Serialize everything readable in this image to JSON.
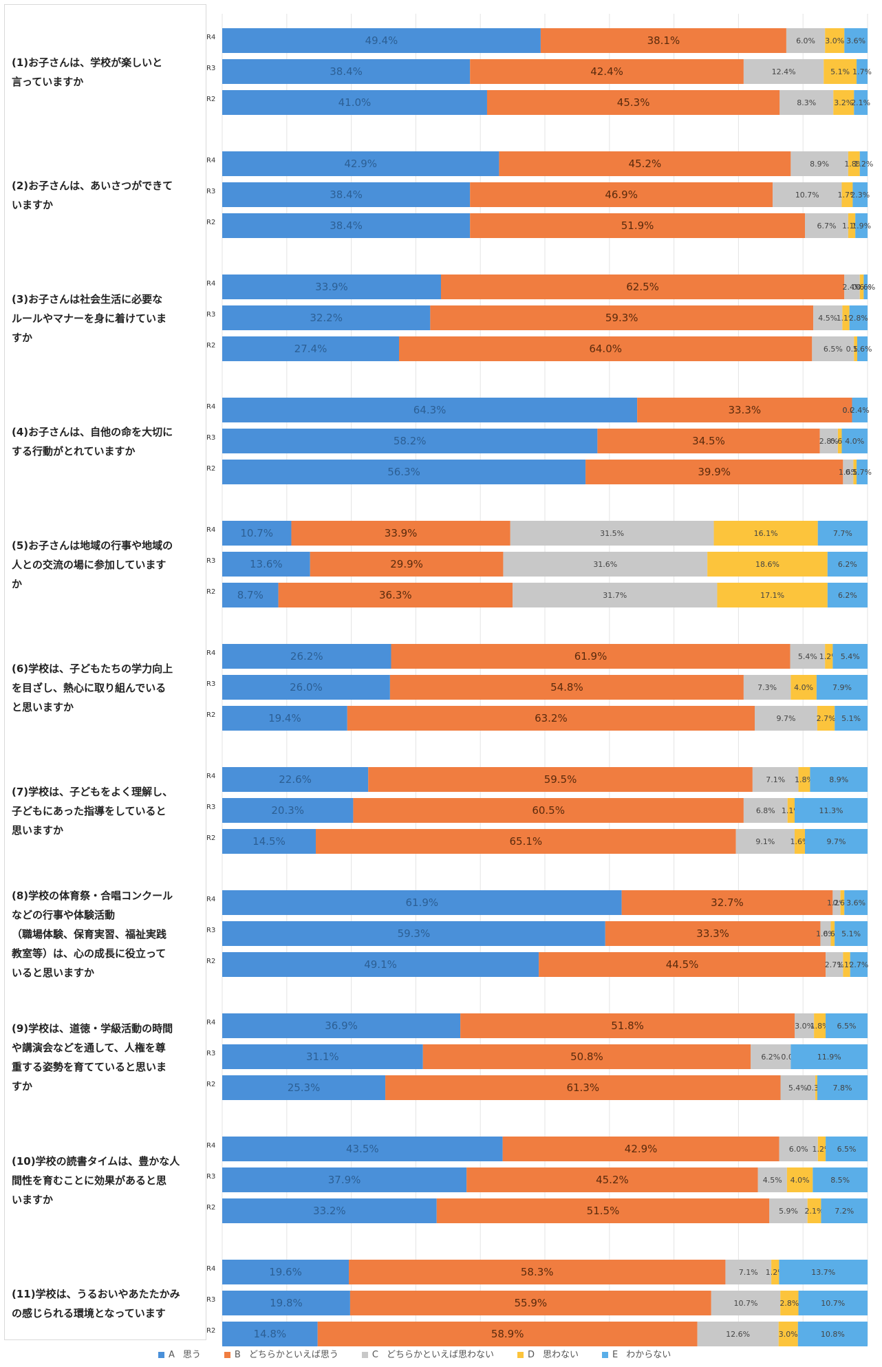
{
  "chart_data": {
    "type": "bar",
    "orientation": "horizontal",
    "stacked": true,
    "percent_stacked": true,
    "grid": true,
    "legend_position": "bottom",
    "series": [
      {
        "key": "A",
        "marker": "A",
        "label": "思う",
        "color": "#4a90d9"
      },
      {
        "key": "B",
        "marker": "B",
        "label": "どちらかといえば思う",
        "color": "#f07d40"
      },
      {
        "key": "C",
        "marker": "C",
        "label": "どちらかといえば思わない",
        "color": "#c8c8c8"
      },
      {
        "key": "D",
        "marker": "D",
        "label": "思わない",
        "color": "#fcc43c"
      },
      {
        "key": "E",
        "marker": "E",
        "label": "わからない",
        "color": "#5aaee8"
      }
    ],
    "questions": [
      {
        "text": "(1)お子さんは、学校が楽しいと\n言っていますか",
        "rows": [
          {
            "year": "R4",
            "values": [
              49.4,
              38.1,
              6.0,
              3.0,
              3.6
            ]
          },
          {
            "year": "R3",
            "values": [
              38.4,
              42.4,
              12.4,
              5.1,
              1.7
            ]
          },
          {
            "year": "R2",
            "values": [
              41.0,
              45.3,
              8.3,
              3.2,
              2.1
            ]
          }
        ]
      },
      {
        "text": "(2)お子さんは、あいさつができて\nいますか",
        "rows": [
          {
            "year": "R4",
            "values": [
              42.9,
              45.2,
              8.9,
              1.8,
              1.2
            ]
          },
          {
            "year": "R3",
            "values": [
              38.4,
              46.9,
              10.7,
              1.7,
              2.3
            ]
          },
          {
            "year": "R2",
            "values": [
              38.4,
              51.9,
              6.7,
              1.1,
              1.9
            ]
          }
        ]
      },
      {
        "text": "(3)お子さんは社会生活に必要な\nルールやマナーを身に着けていま\nすか",
        "rows": [
          {
            "year": "R4",
            "values": [
              33.9,
              62.5,
              2.4,
              0.6,
              0.6
            ]
          },
          {
            "year": "R3",
            "values": [
              32.2,
              59.3,
              4.5,
              1.1,
              2.8
            ]
          },
          {
            "year": "R2",
            "values": [
              27.4,
              64.0,
              6.5,
              0.5,
              1.6
            ]
          }
        ]
      },
      {
        "text": "(4)お子さんは、自他の命を大切に\nする行動がとれていますか",
        "rows": [
          {
            "year": "R4",
            "values": [
              64.3,
              33.3,
              0.0,
              0.0,
              2.4
            ]
          },
          {
            "year": "R3",
            "values": [
              58.2,
              34.5,
              2.8,
              0.6,
              4.0
            ]
          },
          {
            "year": "R2",
            "values": [
              56.3,
              39.9,
              1.6,
              0.5,
              1.7
            ]
          }
        ]
      },
      {
        "text": "(5)お子さんは地域の行事や地域の\n人との交流の場に参加しています\nか",
        "rows": [
          {
            "year": "R4",
            "values": [
              10.7,
              33.9,
              31.5,
              16.1,
              7.7
            ]
          },
          {
            "year": "R3",
            "values": [
              13.6,
              29.9,
              31.6,
              18.6,
              6.2
            ]
          },
          {
            "year": "R2",
            "values": [
              8.7,
              36.3,
              31.7,
              17.1,
              6.2
            ]
          }
        ]
      },
      {
        "text": "(6)学校は、子どもたちの学力向上\nを目ざし、熱心に取り組んでいる\nと思いますか",
        "rows": [
          {
            "year": "R4",
            "values": [
              26.2,
              61.9,
              5.4,
              1.2,
              5.4
            ]
          },
          {
            "year": "R3",
            "values": [
              26.0,
              54.8,
              7.3,
              4.0,
              7.9
            ]
          },
          {
            "year": "R2",
            "values": [
              19.4,
              63.2,
              9.7,
              2.7,
              5.1
            ]
          }
        ]
      },
      {
        "text": "(7)学校は、子どもをよく理解し、\n子どもにあった指導をしていると\n思いますか",
        "rows": [
          {
            "year": "R4",
            "values": [
              22.6,
              59.5,
              7.1,
              1.8,
              8.9
            ]
          },
          {
            "year": "R3",
            "values": [
              20.3,
              60.5,
              6.8,
              1.1,
              11.3
            ]
          },
          {
            "year": "R2",
            "values": [
              14.5,
              65.1,
              9.1,
              1.6,
              9.7
            ]
          }
        ]
      },
      {
        "text": "(8)学校の体育祭・合唱コンクール\nなどの行事や体験活動\n（職場体験、保育実習、福祉実践\n教室等）は、心の成長に役立って\nいると思いますか",
        "rows": [
          {
            "year": "R4",
            "values": [
              61.9,
              32.7,
              1.2,
              0.6,
              3.6
            ]
          },
          {
            "year": "R3",
            "values": [
              59.3,
              33.3,
              1.6,
              0.6,
              5.1
            ]
          },
          {
            "year": "R2",
            "values": [
              49.1,
              44.5,
              2.7,
              1.1,
              2.7
            ]
          }
        ]
      },
      {
        "text": "(9)学校は、道徳・学級活動の時間\nや講演会などを通して、人権を尊\n重する姿勢を育てていると思いま\nすか",
        "rows": [
          {
            "year": "R4",
            "values": [
              36.9,
              51.8,
              3.0,
              1.8,
              6.5
            ]
          },
          {
            "year": "R3",
            "values": [
              31.1,
              50.8,
              6.2,
              0.0,
              11.9
            ]
          },
          {
            "year": "R2",
            "values": [
              25.3,
              61.3,
              5.4,
              0.3,
              7.8
            ]
          }
        ]
      },
      {
        "text": "(10)学校の読書タイムは、豊かな人\n間性を育むことに効果があると思\nいますか",
        "rows": [
          {
            "year": "R4",
            "values": [
              43.5,
              42.9,
              6.0,
              1.2,
              6.5
            ]
          },
          {
            "year": "R3",
            "values": [
              37.9,
              45.2,
              4.5,
              4.0,
              8.5
            ]
          },
          {
            "year": "R2",
            "values": [
              33.2,
              51.5,
              5.9,
              2.1,
              7.2
            ]
          }
        ]
      },
      {
        "text": "(11)学校は、うるおいやあたたかみ\nの感じられる環境となっています",
        "rows": [
          {
            "year": "R4",
            "values": [
              19.6,
              58.3,
              7.1,
              1.2,
              13.7
            ]
          },
          {
            "year": "R3",
            "values": [
              19.8,
              55.9,
              10.7,
              2.8,
              10.7
            ]
          },
          {
            "year": "R2",
            "values": [
              14.8,
              58.9,
              12.6,
              3.0,
              10.8
            ]
          }
        ]
      }
    ]
  }
}
